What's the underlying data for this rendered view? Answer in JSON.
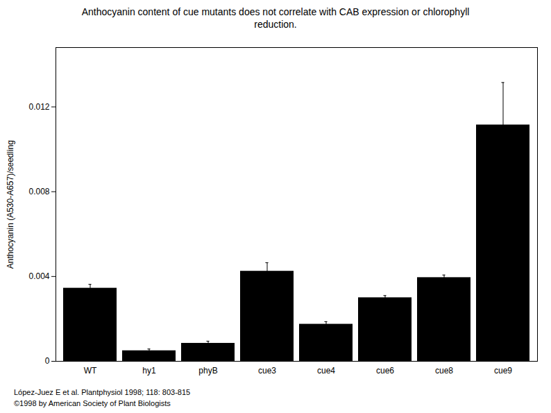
{
  "chart_data": {
    "type": "bar",
    "title": "Anthocyanin content of cue mutants does not correlate with CAB expression or chlorophyll\nreduction.",
    "ylabel": "Anthocyanin (A530-A657)/seedling",
    "categories": [
      "WT",
      "hy1",
      "phyB",
      "cue3",
      "cue4",
      "cue6",
      "cue8",
      "cue9"
    ],
    "values": [
      0.00345,
      0.0005,
      0.00085,
      0.00425,
      0.00175,
      0.003,
      0.00395,
      0.01115
    ],
    "errors": [
      0.00018,
      8e-05,
      0.0001,
      0.0004,
      0.00012,
      0.0001,
      0.00012,
      0.002
    ],
    "ylim": [
      0,
      0.0148
    ],
    "yticks": [
      0,
      0.004,
      0.008,
      0.012
    ],
    "grid": false,
    "annotations": [
      "López-Juez E et al. Plantphysiol 1998; 118: 803-815",
      "©1998 by American Society of Plant Biologists"
    ]
  }
}
